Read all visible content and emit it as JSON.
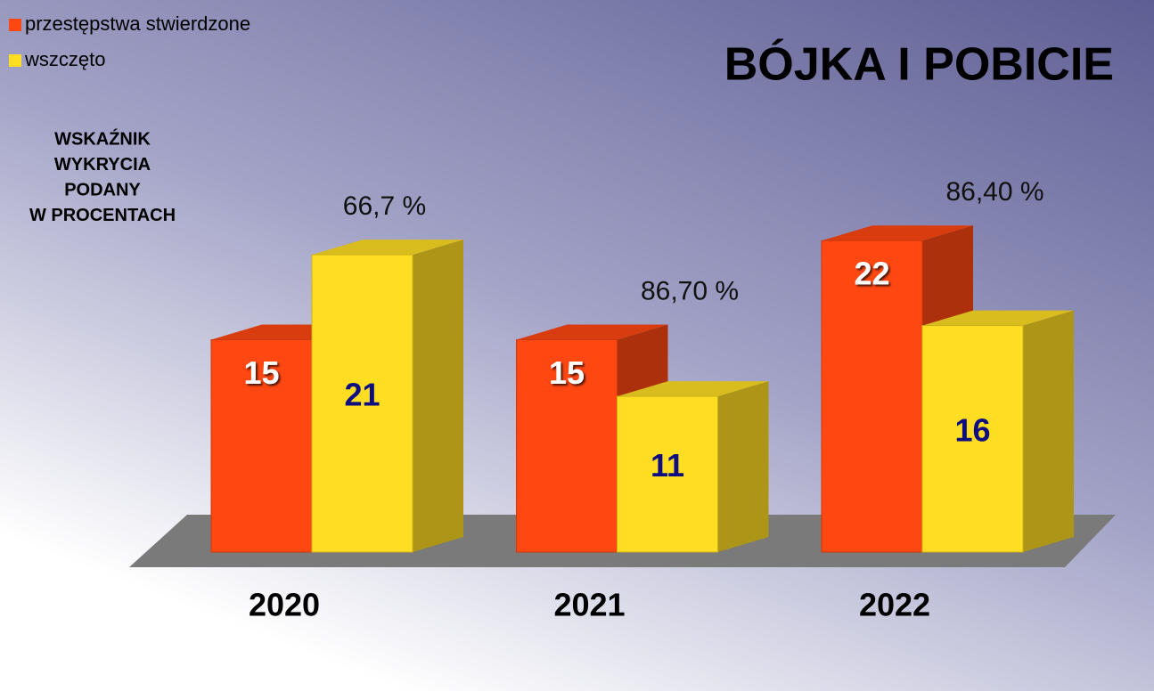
{
  "chart_data": {
    "type": "bar3d",
    "title": "BÓJKA I POBICIE",
    "note_lines": [
      "WSKAŹNIK",
      "WYKRYCIA",
      "PODANY",
      "W PROCENTACH"
    ],
    "categories": [
      "2020",
      "2021",
      "2022"
    ],
    "series": [
      {
        "name": "przestępstwa stwierdzone",
        "color": "#ff4712",
        "values": [
          15,
          15,
          22
        ]
      },
      {
        "name": "wszczęto",
        "color": "#ffdd22",
        "values": [
          21,
          11,
          16
        ]
      }
    ],
    "annotations": [
      "66,7 %",
      "86,70 %",
      "86,40 %"
    ],
    "legend": "top-left"
  }
}
